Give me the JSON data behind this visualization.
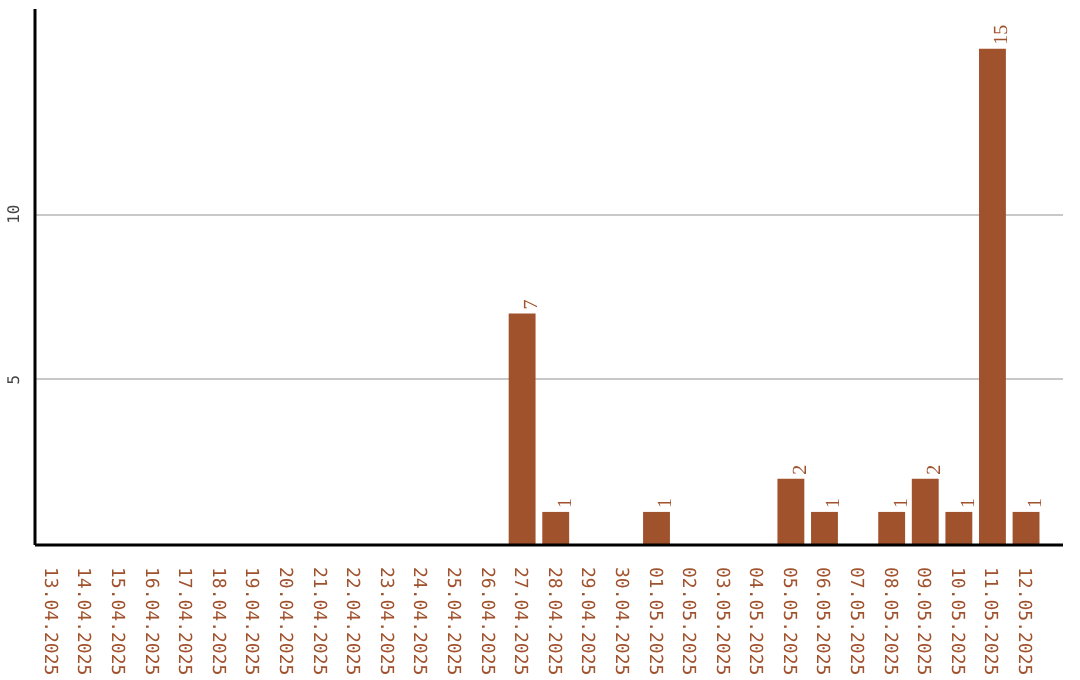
{
  "chart_data": {
    "type": "bar",
    "categories": [
      "13.04.2025",
      "14.04.2025",
      "15.04.2025",
      "16.04.2025",
      "17.04.2025",
      "18.04.2025",
      "19.04.2025",
      "20.04.2025",
      "21.04.2025",
      "22.04.2025",
      "23.04.2025",
      "24.04.2025",
      "25.04.2025",
      "26.04.2025",
      "27.04.2025",
      "28.04.2025",
      "29.04.2025",
      "30.04.2025",
      "01.05.2025",
      "02.05.2025",
      "03.05.2025",
      "04.05.2025",
      "05.05.2025",
      "06.05.2025",
      "07.05.2025",
      "08.05.2025",
      "09.05.2025",
      "10.05.2025",
      "11.05.2025",
      "12.05.2025"
    ],
    "values": [
      0,
      0,
      0,
      0,
      0,
      0,
      0,
      0,
      0,
      0,
      0,
      0,
      0,
      0,
      7,
      1,
      0,
      0,
      1,
      0,
      0,
      0,
      2,
      1,
      0,
      1,
      2,
      1,
      15,
      1
    ],
    "value_labels": [
      null,
      null,
      null,
      null,
      null,
      null,
      null,
      null,
      null,
      null,
      null,
      null,
      null,
      null,
      "7",
      "1",
      null,
      null,
      "1",
      null,
      null,
      null,
      "2",
      "1",
      null,
      "1",
      "2",
      "1",
      "15",
      "1"
    ],
    "color": "#a0522d",
    "ylim": [
      0,
      16.2
    ],
    "yticks": [
      5,
      10
    ],
    "grid": "y"
  }
}
